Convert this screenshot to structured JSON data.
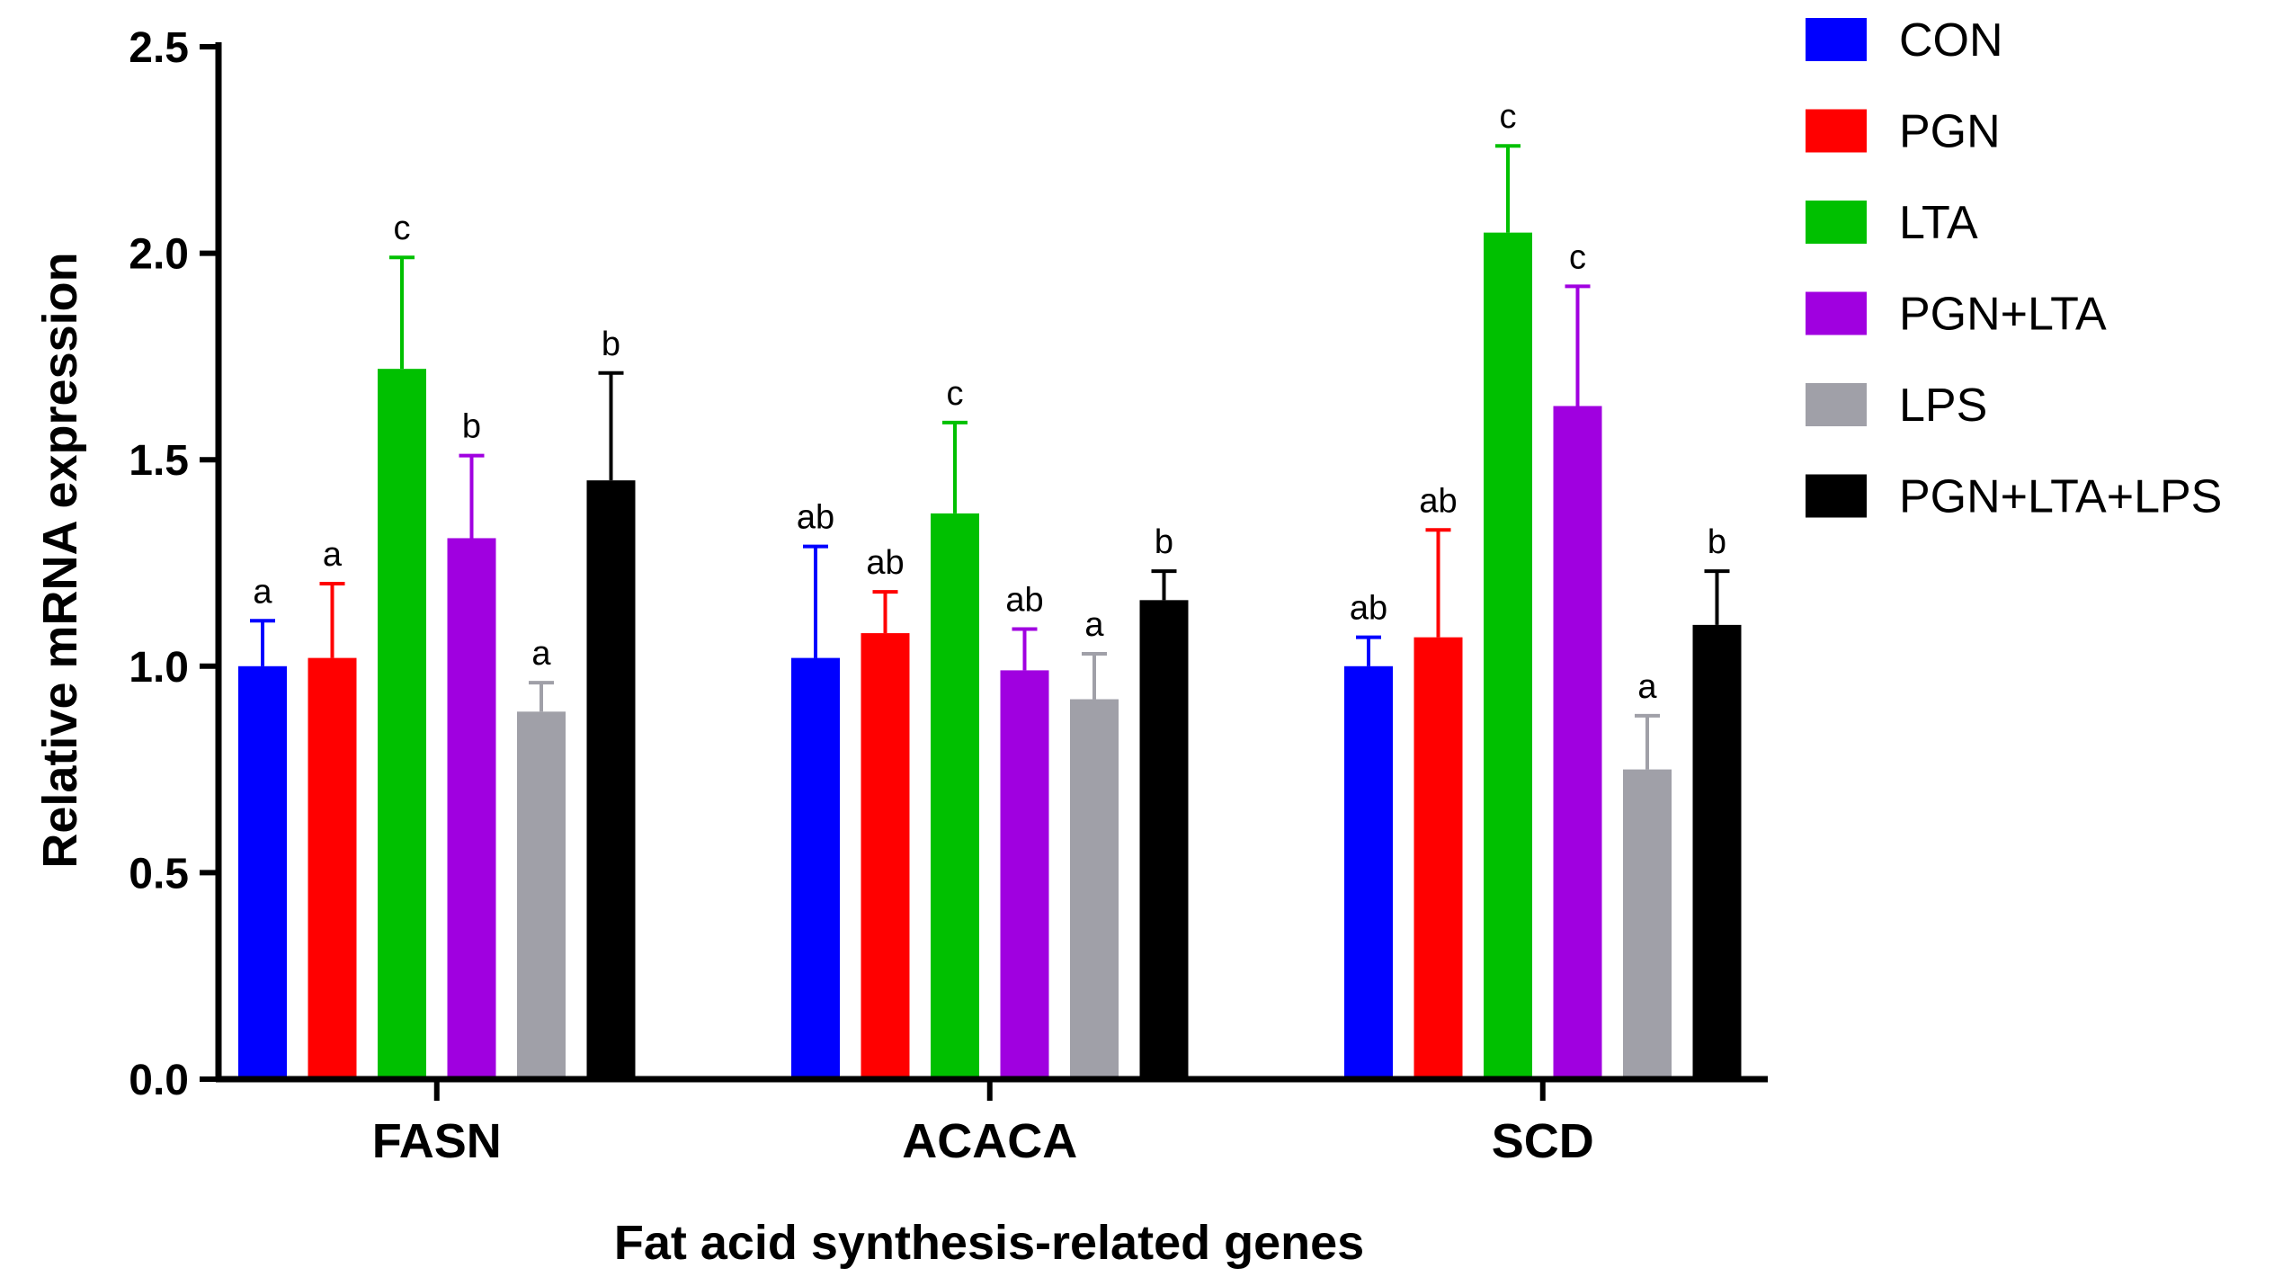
{
  "chart_data": {
    "type": "bar",
    "title": "",
    "xlabel": "Fat acid synthesis-related genes",
    "ylabel": "Relative mRNA expression",
    "ylim": [
      0,
      2.5
    ],
    "yticks": [
      "0.0",
      "0.5",
      "1.0",
      "1.5",
      "2.0",
      "2.5"
    ],
    "ytick_values": [
      0,
      0.5,
      1.0,
      1.5,
      2.0,
      2.5
    ],
    "categories": [
      "FASN",
      "ACACA",
      "SCD"
    ],
    "legend_position": "top-right",
    "series": [
      {
        "name": "CON",
        "color": "#0000ff",
        "values": [
          1.0,
          1.02,
          1.0
        ],
        "errors": [
          0.11,
          0.27,
          0.07
        ],
        "labels": [
          "a",
          "ab",
          "ab"
        ]
      },
      {
        "name": "PGN",
        "color": "#ff0000",
        "values": [
          1.02,
          1.08,
          1.07
        ],
        "errors": [
          0.18,
          0.1,
          0.26
        ],
        "labels": [
          "a",
          "ab",
          "ab"
        ]
      },
      {
        "name": "LTA",
        "color": "#00c000",
        "values": [
          1.72,
          1.37,
          2.05
        ],
        "errors": [
          0.27,
          0.22,
          0.21
        ],
        "labels": [
          "c",
          "c",
          "c"
        ]
      },
      {
        "name": "PGN+LTA",
        "color": "#a000e0",
        "values": [
          1.31,
          0.99,
          1.63
        ],
        "errors": [
          0.2,
          0.1,
          0.29
        ],
        "labels": [
          "b",
          "ab",
          "c"
        ]
      },
      {
        "name": "LPS",
        "color": "#a0a0a8",
        "values": [
          0.89,
          0.92,
          0.75
        ],
        "errors": [
          0.07,
          0.11,
          0.13
        ],
        "labels": [
          "a",
          "a",
          "a"
        ]
      },
      {
        "name": "PGN+LTA+LPS",
        "color": "#000000",
        "values": [
          1.45,
          1.16,
          1.1
        ],
        "errors": [
          0.26,
          0.07,
          0.13
        ],
        "labels": [
          "b",
          "b",
          "b"
        ]
      }
    ]
  }
}
